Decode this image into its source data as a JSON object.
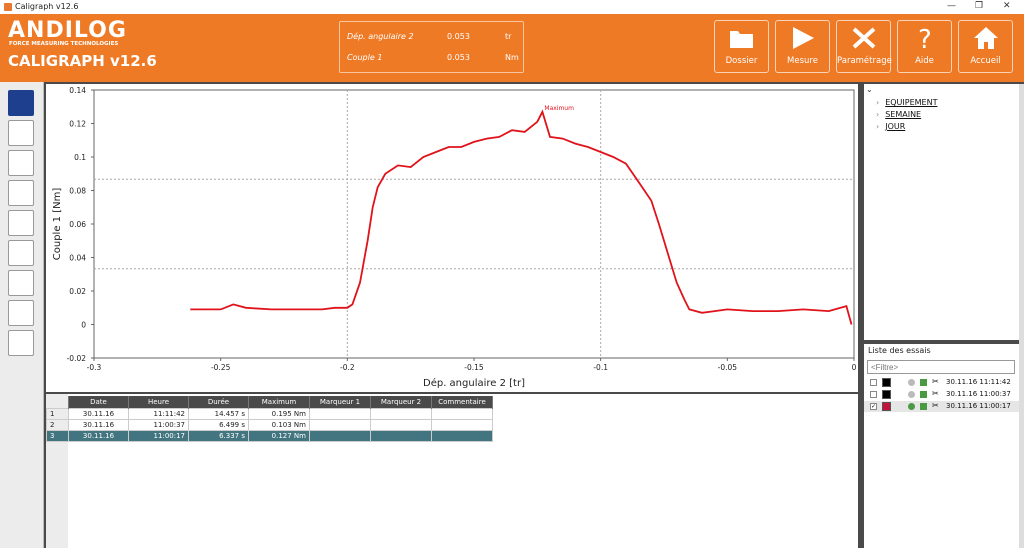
{
  "window": {
    "title": "Caligraph v12.6",
    "min": "—",
    "restore": "❐",
    "close": "✕"
  },
  "header": {
    "logo": "ANDILOG",
    "tagline": "FORCE MEASURING TECHNOLOGIES",
    "app_title": "CALIGRAPH v12.6",
    "readout": [
      {
        "label": "Dép. angulaire 2",
        "value": "0.053",
        "unit": "tr"
      },
      {
        "label": "Couple 1",
        "value": "0.053",
        "unit": "Nm"
      }
    ],
    "buttons": [
      {
        "label": "Dossier",
        "icon": "folder-icon"
      },
      {
        "label": "Mesure",
        "icon": "play-icon"
      },
      {
        "label": "Paramétrage",
        "icon": "tools-icon"
      },
      {
        "label": "Aide",
        "icon": "question-icon"
      },
      {
        "label": "Accueil",
        "icon": "home-icon"
      }
    ]
  },
  "toolbar": [
    "cursor-tool-icon",
    "zoom-curve-icon",
    "grid-delete-icon",
    "xy-axes-icon",
    "add-graph-icon",
    "export-icon",
    "axis-icon",
    "excel-export-icon",
    "magnify-icon"
  ],
  "chart_data": {
    "type": "line",
    "xlabel": "Dép. angulaire 2 [tr]",
    "ylabel": "Couple 1 [Nm]",
    "xlim": [
      -0.3,
      0
    ],
    "ylim": [
      -0.02,
      0.14
    ],
    "xticks": [
      "-0.3",
      "-0.25",
      "-0.2",
      "-0.15",
      "-0.1",
      "-0.05",
      "0"
    ],
    "yticks": [
      "0.14",
      "0.12",
      "0.1",
      "0.08",
      "0.06",
      "0.04",
      "0.02",
      "0",
      "-0.02"
    ],
    "color": "#e0121a",
    "annotation": {
      "text": "Maximum",
      "x": -0.123,
      "y": 0.127
    },
    "series": [
      {
        "x": [
          -0.262,
          -0.25,
          -0.245,
          -0.24,
          -0.23,
          -0.22,
          -0.21,
          -0.205,
          -0.2,
          -0.198,
          -0.195,
          -0.192,
          -0.19,
          -0.188,
          -0.185,
          -0.18,
          -0.175,
          -0.17,
          -0.165,
          -0.16,
          -0.155,
          -0.15,
          -0.145,
          -0.14,
          -0.135,
          -0.13,
          -0.125,
          -0.123,
          -0.12,
          -0.115,
          -0.11,
          -0.105,
          -0.1,
          -0.095,
          -0.09,
          -0.085,
          -0.08,
          -0.077,
          -0.075,
          -0.072,
          -0.07,
          -0.067,
          -0.065,
          -0.06,
          -0.055,
          -0.05,
          -0.04,
          -0.03,
          -0.02,
          -0.01,
          -0.003,
          -0.001
        ],
        "y": [
          0.009,
          0.009,
          0.012,
          0.01,
          0.009,
          0.009,
          0.009,
          0.01,
          0.01,
          0.012,
          0.025,
          0.05,
          0.07,
          0.082,
          0.09,
          0.095,
          0.094,
          0.1,
          0.103,
          0.106,
          0.106,
          0.109,
          0.111,
          0.112,
          0.116,
          0.115,
          0.121,
          0.127,
          0.112,
          0.111,
          0.108,
          0.106,
          0.103,
          0.1,
          0.096,
          0.085,
          0.074,
          0.06,
          0.05,
          0.035,
          0.025,
          0.015,
          0.009,
          0.007,
          0.008,
          0.009,
          0.008,
          0.008,
          0.009,
          0.008,
          0.011,
          0.0
        ]
      }
    ]
  },
  "table": {
    "headers": [
      "",
      "Date",
      "Heure",
      "Durée",
      "Maximum",
      "Marqueur 1",
      "Marqueur 2",
      "Commentaire"
    ],
    "rows": [
      [
        "1",
        "30.11.16",
        "11:11:42",
        "14.457 s",
        "0.195 Nm",
        "",
        "",
        ""
      ],
      [
        "2",
        "30.11.16",
        "11:00:37",
        "6.499 s",
        "0.103 Nm",
        "",
        "",
        ""
      ],
      [
        "3",
        "30.11.16",
        "11:00:17",
        "6.337 s",
        "0.127 Nm",
        "",
        "",
        ""
      ]
    ]
  },
  "tree": [
    "EQUIPEMENT",
    "SEMAINE",
    "JOUR"
  ],
  "essais": {
    "title": "Liste des essais",
    "filter_placeholder": "<Filtre>",
    "items": [
      {
        "checked": false,
        "color": "#000000",
        "label": "30.11.16 11:11:42"
      },
      {
        "checked": false,
        "color": "#000000",
        "label": "30.11.16 11:00:37"
      },
      {
        "checked": true,
        "color": "#c0143c",
        "label": "30.11.16 11:00:17"
      }
    ]
  }
}
